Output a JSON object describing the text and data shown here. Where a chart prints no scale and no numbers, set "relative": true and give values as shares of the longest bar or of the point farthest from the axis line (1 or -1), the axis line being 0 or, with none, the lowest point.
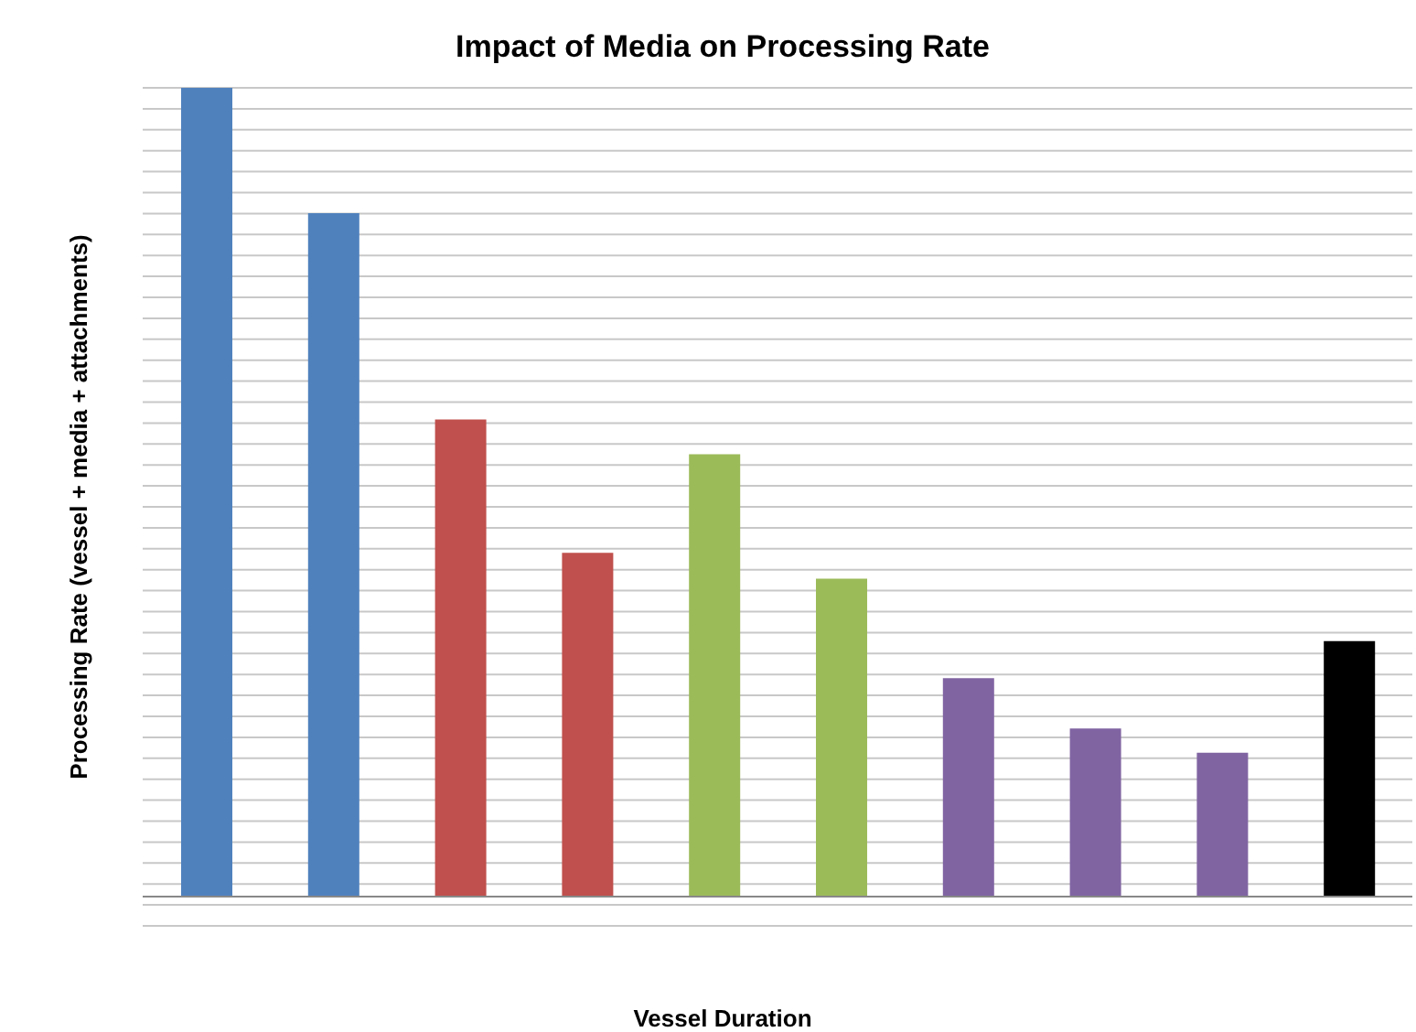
{
  "chart_data": {
    "type": "bar",
    "title": "Impact of Media on Processing Rate",
    "xlabel": "Vessel Duration",
    "ylabel": "Processing Rate (vessel + media + attachments)",
    "relative": true,
    "grid": "y",
    "categories": [
      null,
      null,
      null,
      null,
      null,
      null,
      null,
      null,
      null,
      null
    ],
    "values": [
      1,
      0.845,
      0.59,
      0.425,
      0.547,
      0.393,
      0.27,
      0.208,
      0.178,
      0.316
    ],
    "colors": [
      "#4f81bd",
      "#4f81bd",
      "#c0504d",
      "#c0504d",
      "#9bbb59",
      "#9bbb59",
      "#8064a2",
      "#8064a2",
      "#8064a2",
      "#000000"
    ]
  }
}
